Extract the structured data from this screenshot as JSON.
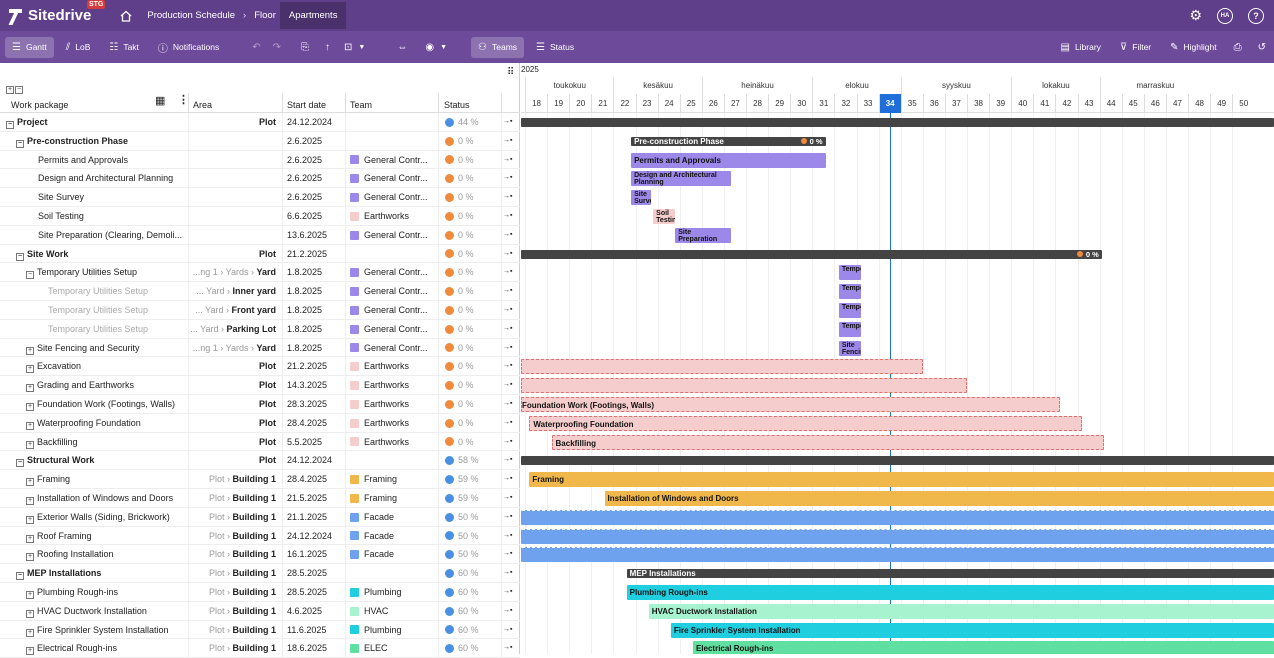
{
  "app": {
    "name": "Sitedrive",
    "env_badge": "STG"
  },
  "breadcrumbs": [
    "Production Schedule",
    "Floor",
    "Apartments"
  ],
  "user_initials": "HA",
  "toolbar": {
    "gantt": "Gantt",
    "lob": "LoB",
    "takt": "Takt",
    "notifications": "Notifications",
    "teams": "Teams",
    "status": "Status",
    "library": "Library",
    "filter": "Filter",
    "highlight": "Highlight"
  },
  "columns": {
    "work_package": "Work package",
    "area": "Area",
    "start_date": "Start date",
    "team": "Team",
    "status": "Status"
  },
  "timeline": {
    "year": "2025",
    "months": [
      {
        "label": "toukokuu",
        "from": 0,
        "span": 4
      },
      {
        "label": "kesäkuu",
        "from": 4,
        "span": 4
      },
      {
        "label": "heinäkuu",
        "from": 8,
        "span": 5
      },
      {
        "label": "elokuu",
        "from": 13,
        "span": 4
      },
      {
        "label": "syyskuu",
        "from": 17,
        "span": 5
      },
      {
        "label": "lokakuu",
        "from": 22,
        "span": 4
      },
      {
        "label": "marraskuu",
        "from": 26,
        "span": 5
      }
    ],
    "weeks": [
      "18",
      "19",
      "20",
      "21",
      "22",
      "23",
      "24",
      "25",
      "26",
      "27",
      "28",
      "29",
      "30",
      "31",
      "32",
      "33",
      "34",
      "35",
      "36",
      "37",
      "38",
      "39",
      "40",
      "41",
      "42",
      "43",
      "44",
      "45",
      "46",
      "47",
      "48",
      "49",
      "50"
    ],
    "current_week": "34"
  },
  "colors": {
    "gc": "#9c88e8",
    "earth": "#f6cdcd",
    "framing": "#f0b84a",
    "facade": "#6ea1ee",
    "plumb": "#1fcfe0",
    "hvac": "#a8f3cf",
    "elec": "#5fe0a0",
    "orange": "#f08a3c",
    "blue": "#4a90e2"
  },
  "rows": [
    {
      "name": "Project",
      "lvl": 0,
      "tg": "−",
      "bold": true,
      "area_pre": "",
      "area": "Plot",
      "start": "24.12.2024",
      "team": "",
      "tc": "",
      "dot": "blue",
      "pct": "44 %"
    },
    {
      "name": "Pre-construction Phase",
      "lvl": 1,
      "tg": "−",
      "bold": true,
      "area_pre": "",
      "area": "",
      "start": "2.6.2025",
      "team": "",
      "tc": "",
      "dot": "orange",
      "pct": "0 %"
    },
    {
      "name": "Permits and Approvals",
      "lvl": 2,
      "tg": "",
      "bold": false,
      "area_pre": "",
      "area": "",
      "start": "2.6.2025",
      "team": "General Contr...",
      "tc": "gc",
      "dot": "orange",
      "pct": "0 %"
    },
    {
      "name": "Design and Architectural Planning",
      "lvl": 2,
      "tg": "",
      "bold": false,
      "area_pre": "",
      "area": "",
      "start": "2.6.2025",
      "team": "General Contr...",
      "tc": "gc",
      "dot": "orange",
      "pct": "0 %"
    },
    {
      "name": "Site Survey",
      "lvl": 2,
      "tg": "",
      "bold": false,
      "area_pre": "",
      "area": "",
      "start": "2.6.2025",
      "team": "General Contr...",
      "tc": "gc",
      "dot": "orange",
      "pct": "0 %"
    },
    {
      "name": "Soil Testing",
      "lvl": 2,
      "tg": "",
      "bold": false,
      "area_pre": "",
      "area": "",
      "start": "6.6.2025",
      "team": "Earthworks",
      "tc": "earth",
      "dot": "orange",
      "pct": "0 %"
    },
    {
      "name": "Site Preparation (Clearing, Demoli...",
      "lvl": 2,
      "tg": "",
      "bold": false,
      "area_pre": "",
      "area": "",
      "start": "13.6.2025",
      "team": "General Contr...",
      "tc": "gc",
      "dot": "orange",
      "pct": "0 %"
    },
    {
      "name": "Site Work",
      "lvl": 1,
      "tg": "−",
      "bold": true,
      "area_pre": "",
      "area": "Plot",
      "start": "21.2.2025",
      "team": "",
      "tc": "",
      "dot": "orange",
      "pct": "0 %"
    },
    {
      "name": "Temporary Utilities Setup",
      "lvl": 2,
      "tg": "−",
      "bold": false,
      "area_pre": "...ng 1 › Yards › ",
      "area": "Yard",
      "start": "1.8.2025",
      "team": "General Contr...",
      "tc": "gc",
      "dot": "orange",
      "pct": "0 %"
    },
    {
      "name": "Temporary Utilities Setup",
      "lvl": 3,
      "tg": "",
      "bold": false,
      "dim": true,
      "area_pre": "... Yard › ",
      "area": "Inner yard",
      "start": "1.8.2025",
      "team": "General Contr...",
      "tc": "gc",
      "dot": "orange",
      "pct": "0 %"
    },
    {
      "name": "Temporary Utilities Setup",
      "lvl": 3,
      "tg": "",
      "bold": false,
      "dim": true,
      "area_pre": "... Yard › ",
      "area": "Front yard",
      "start": "1.8.2025",
      "team": "General Contr...",
      "tc": "gc",
      "dot": "orange",
      "pct": "0 %"
    },
    {
      "name": "Temporary Utilities Setup",
      "lvl": 3,
      "tg": "",
      "bold": false,
      "dim": true,
      "area_pre": "... Yard › ",
      "area": "Parking Lot",
      "start": "1.8.2025",
      "team": "General Contr...",
      "tc": "gc",
      "dot": "orange",
      "pct": "0 %"
    },
    {
      "name": "Site Fencing and Security",
      "lvl": 2,
      "tg": "+",
      "bold": false,
      "area_pre": "...ng 1 › Yards › ",
      "area": "Yard",
      "start": "1.8.2025",
      "team": "General Contr...",
      "tc": "gc",
      "dot": "orange",
      "pct": "0 %"
    },
    {
      "name": "Excavation",
      "lvl": 2,
      "tg": "+",
      "bold": false,
      "area_pre": "",
      "area": "Plot",
      "start": "21.2.2025",
      "team": "Earthworks",
      "tc": "earth",
      "dot": "orange",
      "pct": "0 %"
    },
    {
      "name": "Grading and Earthworks",
      "lvl": 2,
      "tg": "+",
      "bold": false,
      "area_pre": "",
      "area": "Plot",
      "start": "14.3.2025",
      "team": "Earthworks",
      "tc": "earth",
      "dot": "orange",
      "pct": "0 %"
    },
    {
      "name": "Foundation Work (Footings, Walls)",
      "lvl": 2,
      "tg": "+",
      "bold": false,
      "area_pre": "",
      "area": "Plot",
      "start": "28.3.2025",
      "team": "Earthworks",
      "tc": "earth",
      "dot": "orange",
      "pct": "0 %"
    },
    {
      "name": "Waterproofing Foundation",
      "lvl": 2,
      "tg": "+",
      "bold": false,
      "area_pre": "",
      "area": "Plot",
      "start": "28.4.2025",
      "team": "Earthworks",
      "tc": "earth",
      "dot": "orange",
      "pct": "0 %"
    },
    {
      "name": "Backfilling",
      "lvl": 2,
      "tg": "+",
      "bold": false,
      "area_pre": "",
      "area": "Plot",
      "start": "5.5.2025",
      "team": "Earthworks",
      "tc": "earth",
      "dot": "orange",
      "pct": "0 %"
    },
    {
      "name": "Structural Work",
      "lvl": 1,
      "tg": "−",
      "bold": true,
      "area_pre": "",
      "area": "Plot",
      "start": "24.12.2024",
      "team": "",
      "tc": "",
      "dot": "blue",
      "pct": "58 %"
    },
    {
      "name": "Framing",
      "lvl": 2,
      "tg": "+",
      "bold": false,
      "area_pre": "Plot › ",
      "area": "Building 1",
      "start": "28.4.2025",
      "team": "Framing",
      "tc": "framing",
      "dot": "blue",
      "pct": "59 %"
    },
    {
      "name": "Installation of Windows and Doors",
      "lvl": 2,
      "tg": "+",
      "bold": false,
      "area_pre": "Plot › ",
      "area": "Building 1",
      "start": "21.5.2025",
      "team": "Framing",
      "tc": "framing",
      "dot": "blue",
      "pct": "59 %"
    },
    {
      "name": "Exterior Walls (Siding, Brickwork)",
      "lvl": 2,
      "tg": "+",
      "bold": false,
      "area_pre": "Plot › ",
      "area": "Building 1",
      "start": "21.1.2025",
      "team": "Facade",
      "tc": "facade",
      "dot": "blue",
      "pct": "50 %"
    },
    {
      "name": "Roof Framing",
      "lvl": 2,
      "tg": "+",
      "bold": false,
      "area_pre": "Plot › ",
      "area": "Building 1",
      "start": "24.12.2024",
      "team": "Facade",
      "tc": "facade",
      "dot": "blue",
      "pct": "50 %"
    },
    {
      "name": "Roofing Installation",
      "lvl": 2,
      "tg": "+",
      "bold": false,
      "area_pre": "Plot › ",
      "area": "Building 1",
      "start": "16.1.2025",
      "team": "Facade",
      "tc": "facade",
      "dot": "blue",
      "pct": "50 %"
    },
    {
      "name": "MEP Installations",
      "lvl": 1,
      "tg": "−",
      "bold": true,
      "area_pre": "Plot › ",
      "area": "Building 1",
      "start": "28.5.2025",
      "team": "",
      "tc": "",
      "dot": "blue",
      "pct": "60 %"
    },
    {
      "name": "Plumbing Rough-ins",
      "lvl": 2,
      "tg": "+",
      "bold": false,
      "area_pre": "Plot › ",
      "area": "Building 1",
      "start": "28.5.2025",
      "team": "Plumbing",
      "tc": "plumb",
      "dot": "blue",
      "pct": "60 %"
    },
    {
      "name": "HVAC Ductwork Installation",
      "lvl": 2,
      "tg": "+",
      "bold": false,
      "area_pre": "Plot › ",
      "area": "Building 1",
      "start": "4.6.2025",
      "team": "HVAC",
      "tc": "hvac",
      "dot": "blue",
      "pct": "60 %"
    },
    {
      "name": "Fire Sprinkler System Installation",
      "lvl": 2,
      "tg": "+",
      "bold": false,
      "area_pre": "Plot › ",
      "area": "Building 1",
      "start": "11.6.2025",
      "team": "Plumbing",
      "tc": "plumb",
      "dot": "blue",
      "pct": "60 %"
    },
    {
      "name": "Electrical Rough-ins",
      "lvl": 2,
      "tg": "+",
      "bold": false,
      "area_pre": "Plot › ",
      "area": "Building 1",
      "start": "18.6.2025",
      "team": "ELEC",
      "tc": "elec",
      "dot": "blue",
      "pct": "60 %"
    }
  ],
  "bars": [
    {
      "row": 0,
      "start": -1,
      "end": 40,
      "kind": "sum",
      "label": ""
    },
    {
      "row": 1,
      "start": 4.8,
      "end": 13.6,
      "kind": "sum",
      "label": "Pre-construction Phase",
      "pct": "0 %"
    },
    {
      "row": 2,
      "start": 4.8,
      "end": 13.6,
      "kind": "gc",
      "label": "Permits and Approvals"
    },
    {
      "row": 3,
      "start": 4.8,
      "end": 9.3,
      "kind": "gc",
      "label": "Design and Architectural Planning",
      "two": true
    },
    {
      "row": 4,
      "start": 4.8,
      "end": 5.7,
      "kind": "gc",
      "label": "Site Survey",
      "two": true
    },
    {
      "row": 5,
      "start": 5.8,
      "end": 6.8,
      "kind": "earth",
      "label": "Soil Testing",
      "two": true
    },
    {
      "row": 6,
      "start": 6.8,
      "end": 9.3,
      "kind": "gc",
      "label": "Site Preparation (Clearing,",
      "two": true
    },
    {
      "row": 7,
      "start": -1,
      "end": 26.1,
      "kind": "sum",
      "label": "",
      "pct": "0 %"
    },
    {
      "row": 8,
      "start": 14.2,
      "end": 15.2,
      "kind": "gc",
      "label": "Temporary",
      "two": true
    },
    {
      "row": 9,
      "start": 14.2,
      "end": 15.2,
      "kind": "gc",
      "label": "Temporary",
      "two": true
    },
    {
      "row": 10,
      "start": 14.2,
      "end": 15.2,
      "kind": "gc",
      "label": "Temporary",
      "two": true
    },
    {
      "row": 11,
      "start": 14.2,
      "end": 15.2,
      "kind": "gc",
      "label": "Temporary",
      "two": true
    },
    {
      "row": 12,
      "start": 14.2,
      "end": 15.2,
      "kind": "gc",
      "label": "Site Fencing",
      "two": true
    },
    {
      "row": 13,
      "start": -1,
      "end": 18,
      "kind": "earthd",
      "label": ""
    },
    {
      "row": 14,
      "start": -1,
      "end": 20,
      "kind": "earthd",
      "label": ""
    },
    {
      "row": 15,
      "start": -1,
      "end": 24.2,
      "kind": "earthd",
      "label": "Foundation Work (Footings, Walls)",
      "clip": true
    },
    {
      "row": 16,
      "start": 0.2,
      "end": 25.2,
      "kind": "earthd",
      "label": "Waterproofing Foundation"
    },
    {
      "row": 17,
      "start": 1.2,
      "end": 26.2,
      "kind": "earthd",
      "label": "Backfilling"
    },
    {
      "row": 18,
      "start": -1,
      "end": 40,
      "kind": "sum",
      "label": ""
    },
    {
      "row": 19,
      "start": 0.2,
      "end": 40,
      "kind": "framing",
      "label": "Framing"
    },
    {
      "row": 20,
      "start": 3.6,
      "end": 40,
      "kind": "framing",
      "label": "Installation of Windows and Doors"
    },
    {
      "row": 21,
      "start": -1,
      "end": 40,
      "kind": "facade",
      "label": ""
    },
    {
      "row": 22,
      "start": -1,
      "end": 40,
      "kind": "facade",
      "label": ""
    },
    {
      "row": 23,
      "start": -1,
      "end": 40,
      "kind": "facade",
      "label": ""
    },
    {
      "row": 24,
      "start": 4.6,
      "end": 40,
      "kind": "sum",
      "label": "MEP Installations"
    },
    {
      "row": 25,
      "start": 4.6,
      "end": 40,
      "kind": "plumb",
      "label": "Plumbing Rough-ins"
    },
    {
      "row": 26,
      "start": 5.6,
      "end": 40,
      "kind": "hvac",
      "label": "HVAC Ductwork Installation"
    },
    {
      "row": 27,
      "start": 6.6,
      "end": 40,
      "kind": "plumb",
      "label": "Fire Sprinkler System Installation"
    },
    {
      "row": 28,
      "start": 7.6,
      "end": 40,
      "kind": "elec",
      "label": "Electrical Rough-ins"
    }
  ]
}
